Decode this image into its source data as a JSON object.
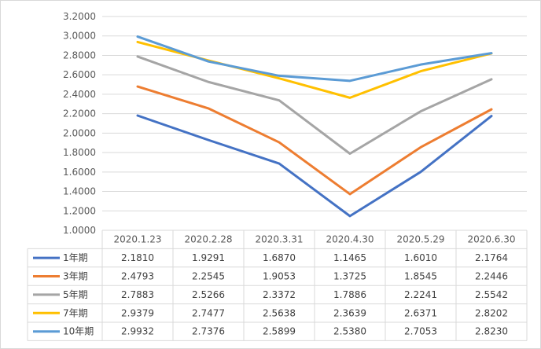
{
  "chart_data": {
    "type": "line",
    "categories": [
      "2020.1.23",
      "2020.2.28",
      "2020.3.31",
      "2020.4.30",
      "2020.5.29",
      "2020.6.30"
    ],
    "ylim": [
      1.0,
      3.2
    ],
    "yticks": [
      "1.0000",
      "1.2000",
      "1.4000",
      "1.6000",
      "1.8000",
      "2.0000",
      "2.2000",
      "2.4000",
      "2.6000",
      "2.8000",
      "3.0000",
      "3.2000"
    ],
    "grid": true,
    "legend": "data-table",
    "series": [
      {
        "name": "1年期",
        "color": "#4472C4",
        "values": [
          2.181,
          1.9291,
          1.687,
          1.1465,
          1.601,
          2.1764
        ],
        "labels": [
          "2.1810",
          "1.9291",
          "1.6870",
          "1.1465",
          "1.6010",
          "2.1764"
        ]
      },
      {
        "name": "3年期",
        "color": "#ED7D31",
        "values": [
          2.4793,
          2.2545,
          1.9053,
          1.3725,
          1.8545,
          2.2446
        ],
        "labels": [
          "2.4793",
          "2.2545",
          "1.9053",
          "1.3725",
          "1.8545",
          "2.2446"
        ]
      },
      {
        "name": "5年期",
        "color": "#A5A5A5",
        "values": [
          2.7883,
          2.5266,
          2.3372,
          1.7886,
          2.2241,
          2.5542
        ],
        "labels": [
          "2.7883",
          "2.5266",
          "2.3372",
          "1.7886",
          "2.2241",
          "2.5542"
        ]
      },
      {
        "name": "7年期",
        "color": "#FFC000",
        "values": [
          2.9379,
          2.7477,
          2.5638,
          2.3639,
          2.6371,
          2.8202
        ],
        "labels": [
          "2.9379",
          "2.7477",
          "2.5638",
          "2.3639",
          "2.6371",
          "2.8202"
        ]
      },
      {
        "name": "10年期",
        "color": "#5B9BD5",
        "values": [
          2.9932,
          2.7376,
          2.5899,
          2.538,
          2.7053,
          2.823
        ],
        "labels": [
          "2.9932",
          "2.7376",
          "2.5899",
          "2.5380",
          "2.7053",
          "2.8230"
        ]
      }
    ]
  }
}
